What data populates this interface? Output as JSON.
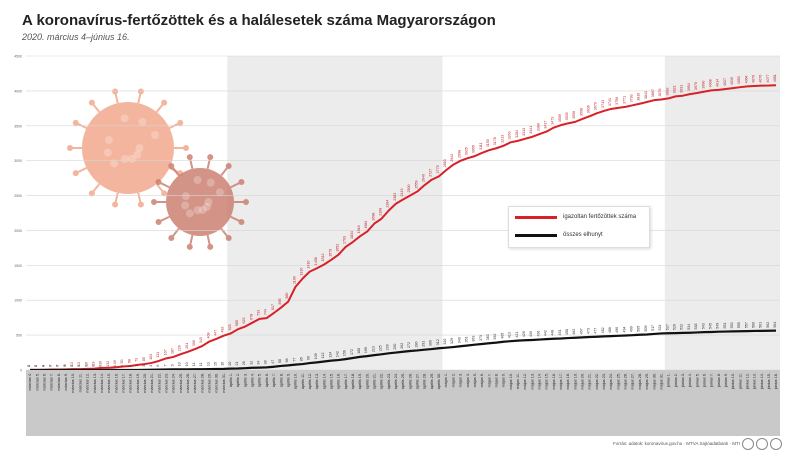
{
  "header": {
    "title": "A koronavírus-fertőzöttek és a halálesetek száma Magyarországon",
    "subtitle": "2020. március 4–június 16."
  },
  "legend": {
    "cases_label": "igazoltan fertőzöttek száma",
    "deaths_label": "összes elhunyt"
  },
  "footer": {
    "text": "Forrás: adatok: koronavirus.gov.hu · MTVA Sajtóadatbank · MTI"
  },
  "chart_data": {
    "type": "line",
    "title": "A koronavírus-fertőzöttek és a halálesetek száma Magyarországon",
    "subtitle": "2020. március 4–június 16.",
    "xlabel": "",
    "ylabel": "",
    "ylim": [
      0,
      4500
    ],
    "yticks": [
      0,
      500,
      1000,
      1500,
      2000,
      2500,
      3000,
      3500,
      4000,
      4500
    ],
    "grid": true,
    "legend_position": "center-right",
    "x": [
      "március 4.",
      "március 5.",
      "március 6.",
      "március 7.",
      "március 8.",
      "március 9.",
      "március 10.",
      "március 11.",
      "március 12.",
      "március 13.",
      "március 14.",
      "március 15.",
      "március 16.",
      "március 17.",
      "március 18.",
      "március 19.",
      "március 20.",
      "március 21.",
      "március 22.",
      "március 23.",
      "március 24.",
      "március 25.",
      "március 26.",
      "március 27.",
      "március 28.",
      "március 29.",
      "március 30.",
      "március 31.",
      "április 1.",
      "április 2.",
      "április 3.",
      "április 4.",
      "április 5.",
      "április 6.",
      "április 7.",
      "április 8.",
      "április 9.",
      "április 10.",
      "április 11.",
      "április 12.",
      "április 13.",
      "április 14.",
      "április 15.",
      "április 16.",
      "április 17.",
      "április 18.",
      "április 19.",
      "április 20.",
      "április 21.",
      "április 22.",
      "április 23.",
      "április 24.",
      "április 25.",
      "április 26.",
      "április 27.",
      "április 28.",
      "április 29.",
      "április 30.",
      "május 1.",
      "május 2.",
      "május 3.",
      "május 4.",
      "május 5.",
      "május 6.",
      "május 7.",
      "május 8.",
      "május 9.",
      "május 10.",
      "május 11.",
      "május 12.",
      "május 13.",
      "május 14.",
      "május 15.",
      "május 16.",
      "május 17.",
      "május 18.",
      "május 19.",
      "május 20.",
      "május 21.",
      "május 22.",
      "május 23.",
      "május 24.",
      "május 25.",
      "május 26.",
      "május 27.",
      "május 28.",
      "május 29.",
      "május 30.",
      "május 31.",
      "június 1.",
      "június 2.",
      "június 3.",
      "június 4.",
      "június 5.",
      "június 6.",
      "június 7.",
      "június 8.",
      "június 9.",
      "június 10.",
      "június 11.",
      "június 12.",
      "június 13.",
      "június 14.",
      "június 15.",
      "június 16."
    ],
    "series": [
      {
        "name": "igazoltan fertőzöttek száma",
        "color": "#d92027",
        "values": [
          2,
          2,
          4,
          7,
          7,
          9,
          13,
          13,
          16,
          19,
          30,
          32,
          39,
          50,
          58,
          73,
          85,
          103,
          131,
          167,
          187,
          226,
          261,
          300,
          343,
          408,
          447,
          492,
          525,
          585,
          623,
          678,
          733,
          744,
          817,
          895,
          980,
          1190,
          1310,
          1410,
          1458,
          1512,
          1579,
          1652,
          1763,
          1834,
          1916,
          1984,
          2098,
          2168,
          2284,
          2383,
          2443,
          2500,
          2559,
          2649,
          2727,
          2775,
          2863,
          2942,
          2998,
          3035,
          3065,
          3111,
          3150,
          3178,
          3213,
          3263,
          3284,
          3313,
          3341,
          3380,
          3417,
          3473,
          3509,
          3535,
          3556,
          3598,
          3636,
          3679,
          3713,
          3741,
          3756,
          3771,
          3793,
          3816,
          3841,
          3867,
          3876,
          3892,
          3921,
          3931,
          3954,
          3970,
          3990,
          4008,
          4014,
          4027,
          4039,
          4053,
          4064,
          4070,
          4076,
          4077,
          4081
        ]
      },
      {
        "name": "összes elhunyt",
        "color": "#111111",
        "values": [
          0,
          0,
          0,
          0,
          0,
          0,
          0,
          0,
          0,
          0,
          0,
          1,
          1,
          1,
          1,
          1,
          3,
          4,
          6,
          7,
          9,
          10,
          10,
          11,
          11,
          13,
          15,
          16,
          20,
          21,
          26,
          32,
          34,
          38,
          47,
          58,
          66,
          77,
          85,
          99,
          109,
          122,
          134,
          142,
          156,
          172,
          188,
          199,
          213,
          225,
          239,
          250,
          262,
          272,
          280,
          291,
          300,
          312,
          320,
          329,
          340,
          351,
          363,
          373,
          383,
          392,
          405,
          413,
          421,
          426,
          430,
          436,
          442,
          448,
          451,
          458,
          462,
          467,
          473,
          477,
          482,
          486,
          490,
          494,
          499,
          505,
          509,
          517,
          524,
          527,
          529,
          532,
          534,
          538,
          543,
          545,
          549,
          551,
          553,
          555,
          557,
          560,
          561,
          562,
          564
        ]
      }
    ]
  }
}
